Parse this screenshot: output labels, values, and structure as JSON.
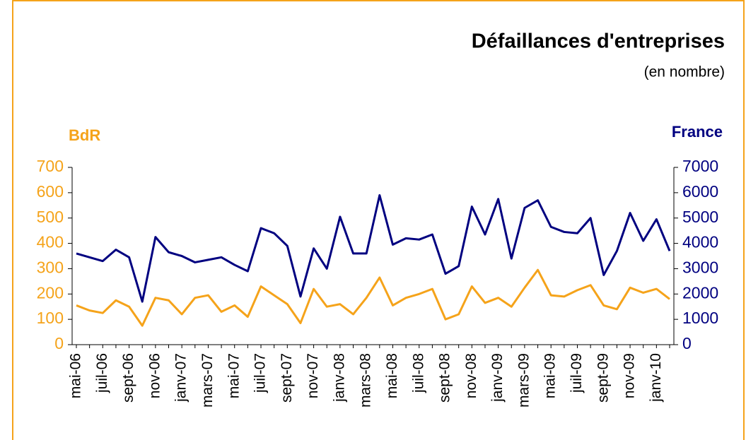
{
  "chart_data": {
    "type": "line",
    "title": "Défaillances d'entreprises",
    "subtitle": "(en nombre)",
    "ylabel": "BdR",
    "y2label": "France",
    "categories": [
      "mai-06",
      null,
      "juil-06",
      null,
      "sept-06",
      null,
      "nov-06",
      null,
      "janv-07",
      null,
      "mars-07",
      null,
      "mai-07",
      null,
      "juil-07",
      null,
      "sept-07",
      null,
      "nov-07",
      null,
      "janv-08",
      null,
      "mars-08",
      null,
      "mai-08",
      null,
      "juil-08",
      null,
      "sept-08",
      null,
      "nov-08",
      null,
      "janv-09",
      null,
      "mars-09",
      null,
      "mai-09",
      null,
      "juil-09",
      null,
      "sept-09",
      null,
      "nov-09",
      null,
      "janv-10",
      null
    ],
    "series": [
      {
        "name": "BdR",
        "color": "#f5a31a",
        "values": [
          155,
          135,
          125,
          175,
          150,
          75,
          185,
          175,
          120,
          185,
          195,
          130,
          155,
          110,
          230,
          195,
          160,
          85,
          220,
          150,
          160,
          120,
          185,
          265,
          155,
          185,
          200,
          220,
          100,
          120,
          230,
          165,
          185,
          150,
          225,
          295,
          195,
          190,
          215,
          235,
          155,
          140,
          225,
          205,
          220,
          180
        ]
      },
      {
        "name": "France",
        "color": "#000080",
        "axis": "y2",
        "values": [
          3600,
          3450,
          3300,
          3750,
          3450,
          1700,
          4250,
          3650,
          3500,
          3250,
          3350,
          3450,
          3150,
          2900,
          4600,
          4400,
          3900,
          1900,
          3800,
          3000,
          5050,
          3600,
          3600,
          5900,
          3950,
          4200,
          4150,
          4350,
          2800,
          3100,
          5450,
          4350,
          5750,
          3400,
          5400,
          5700,
          4650,
          4450,
          4400,
          5000,
          2750,
          3700,
          5200,
          4100,
          4950,
          3700
        ]
      }
    ],
    "ylim": [
      0,
      700
    ],
    "yticks": [
      0,
      100,
      200,
      300,
      400,
      500,
      600,
      700
    ],
    "y2lim": [
      0,
      7000
    ],
    "y2ticks": [
      0,
      1000,
      2000,
      3000,
      4000,
      5000,
      6000,
      7000
    ]
  }
}
